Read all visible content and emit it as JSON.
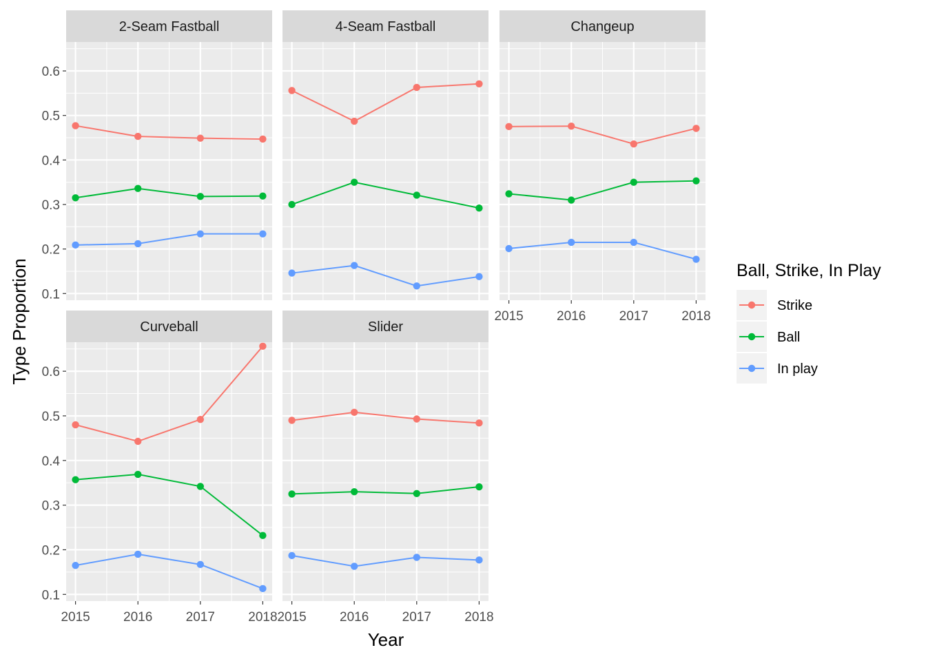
{
  "chart_data": {
    "type": "line",
    "x": [
      2015,
      2016,
      2017,
      2018
    ],
    "xlabel": "Year",
    "ylabel": "Type Proportion",
    "ylim": [
      0.085,
      0.665
    ],
    "y_ticks": [
      0.1,
      0.2,
      0.3,
      0.4,
      0.5,
      0.6
    ],
    "y_tick_labels": [
      "0.1",
      "0.2",
      "0.3",
      "0.4",
      "0.5",
      "0.6"
    ],
    "x_tick_labels": [
      "2015",
      "2016",
      "2017",
      "2018"
    ],
    "grid": true,
    "legend": {
      "title": "Ball, Strike, In Play",
      "placement": "right",
      "entries": [
        {
          "name": "Strike",
          "color": "#F8766D"
        },
        {
          "name": "Ball",
          "color": "#00BA38"
        },
        {
          "name": "In play",
          "color": "#619CFF"
        }
      ]
    },
    "panels": [
      {
        "title": "2-Seam Fastball",
        "series": [
          {
            "name": "Strike",
            "values": [
              0.477,
              0.453,
              0.449,
              0.447
            ]
          },
          {
            "name": "Ball",
            "values": [
              0.315,
              0.336,
              0.318,
              0.319
            ]
          },
          {
            "name": "In play",
            "values": [
              0.209,
              0.212,
              0.234,
              0.234
            ]
          }
        ]
      },
      {
        "title": "4-Seam Fastball",
        "series": [
          {
            "name": "Strike",
            "values": [
              0.556,
              0.487,
              0.563,
              0.571
            ]
          },
          {
            "name": "Ball",
            "values": [
              0.3,
              0.35,
              0.321,
              0.292
            ]
          },
          {
            "name": "In play",
            "values": [
              0.146,
              0.163,
              0.117,
              0.138
            ]
          }
        ]
      },
      {
        "title": "Changeup",
        "series": [
          {
            "name": "Strike",
            "values": [
              0.475,
              0.476,
              0.436,
              0.471
            ]
          },
          {
            "name": "Ball",
            "values": [
              0.324,
              0.31,
              0.35,
              0.353
            ]
          },
          {
            "name": "In play",
            "values": [
              0.201,
              0.215,
              0.215,
              0.177
            ]
          }
        ]
      },
      {
        "title": "Curveball",
        "series": [
          {
            "name": "Strike",
            "values": [
              0.48,
              0.443,
              0.492,
              0.656
            ]
          },
          {
            "name": "Ball",
            "values": [
              0.357,
              0.369,
              0.342,
              0.232
            ]
          },
          {
            "name": "In play",
            "values": [
              0.165,
              0.19,
              0.167,
              0.113
            ]
          }
        ]
      },
      {
        "title": "Slider",
        "series": [
          {
            "name": "Strike",
            "values": [
              0.49,
              0.508,
              0.493,
              0.484
            ]
          },
          {
            "name": "Ball",
            "values": [
              0.325,
              0.33,
              0.326,
              0.341
            ]
          },
          {
            "name": "In play",
            "values": [
              0.187,
              0.163,
              0.183,
              0.177
            ]
          }
        ]
      }
    ]
  }
}
